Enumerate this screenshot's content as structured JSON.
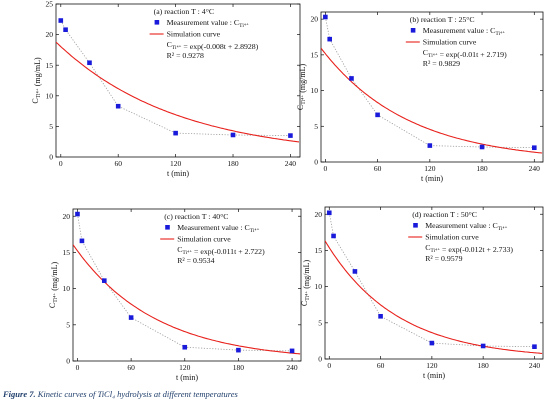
{
  "chart_data": [
    {
      "type": "scatter",
      "panel_label": "(a) reaction T : 4°C",
      "xlabel": "t (min)",
      "ylabel": "C_Ti⁴⁺ (mg/mL)",
      "xlim": [
        -5,
        250
      ],
      "ylim": [
        0,
        25
      ],
      "xticks": [
        0,
        60,
        120,
        180,
        240
      ],
      "yticks": [
        0,
        5,
        10,
        15,
        20,
        25
      ],
      "legend": {
        "measurement": "Measurement value : C_Ti⁴⁺",
        "simulation": "Simulation curve",
        "equation": "C_Ti⁴⁺ = exp(-0.008t + 2.8928)",
        "r2": "R² = 0.9278"
      },
      "series": [
        {
          "name": "Measurement value",
          "x": [
            0,
            5,
            30,
            60,
            120,
            180,
            240
          ],
          "y": [
            22.3,
            20.8,
            15.4,
            8.3,
            3.9,
            3.6,
            3.5
          ]
        },
        {
          "name": "Simulation curve",
          "k": 0.008,
          "b": 2.8928
        }
      ]
    },
    {
      "type": "scatter",
      "panel_label": "(b) reaction T : 25°C",
      "xlabel": "t (min)",
      "ylabel": "C_Ti⁴⁺ (mg/mL)",
      "xlim": [
        -5,
        250
      ],
      "ylim": [
        0,
        21
      ],
      "xticks": [
        0,
        60,
        120,
        180,
        240
      ],
      "yticks": [
        0,
        5,
        10,
        15,
        20
      ],
      "legend": {
        "measurement": "Measurement value : C_Ti⁴⁺",
        "simulation": "Simulation curve",
        "equation": "C_Ti⁴⁺ = exp(-0.01t + 2.719)",
        "r2": "R² = 0.9829"
      },
      "series": [
        {
          "name": "Measurement value",
          "x": [
            0,
            5,
            30,
            60,
            120,
            180,
            240
          ],
          "y": [
            20.3,
            17.2,
            11.7,
            6.6,
            2.3,
            2.1,
            2.0
          ]
        },
        {
          "name": "Simulation curve",
          "k": 0.01,
          "b": 2.719
        }
      ]
    },
    {
      "type": "scatter",
      "panel_label": "(c) reaction T : 40°C",
      "xlabel": "t (min)",
      "ylabel": "C_Ti⁴⁺ (mg/mL)",
      "xlim": [
        -5,
        250
      ],
      "ylim": [
        0,
        21
      ],
      "xticks": [
        0,
        60,
        120,
        180,
        240
      ],
      "yticks": [
        0,
        5,
        10,
        15,
        20
      ],
      "legend": {
        "measurement": "Measurement value : C_Ti⁴⁺",
        "simulation": "Simulation curve",
        "equation": "C_Ti⁴⁺ = exp(-0.011t + 2.722)",
        "r2": "R² = 0.9534"
      },
      "series": [
        {
          "name": "Measurement value",
          "x": [
            0,
            5,
            30,
            60,
            120,
            180,
            240
          ],
          "y": [
            20.3,
            16.6,
            11.1,
            6.0,
            1.9,
            1.5,
            1.4
          ]
        },
        {
          "name": "Simulation curve",
          "k": 0.011,
          "b": 2.722
        }
      ]
    },
    {
      "type": "scatter",
      "panel_label": "(d) reaction T : 50°C",
      "xlabel": "t (min)",
      "ylabel": "C_Ti⁴⁺ (mg/mL)",
      "xlim": [
        -5,
        250
      ],
      "ylim": [
        0,
        21
      ],
      "xticks": [
        0,
        60,
        120,
        180,
        240
      ],
      "yticks": [
        0,
        5,
        10,
        15,
        20
      ],
      "legend": {
        "measurement": "Measurement value : C_Ti⁴⁺",
        "simulation": "Simulation curve",
        "equation": "C_Ti⁴⁺ = exp(-0.012t + 2.733)",
        "r2": "R² = 0.9579"
      },
      "series": [
        {
          "name": "Measurement value",
          "x": [
            0,
            5,
            30,
            60,
            120,
            180,
            240
          ],
          "y": [
            20.2,
            17.0,
            12.1,
            5.9,
            2.2,
            1.8,
            1.7
          ]
        },
        {
          "name": "Simulation curve",
          "k": 0.012,
          "b": 2.733
        }
      ]
    }
  ],
  "colors": {
    "measurement": "#1a1adb",
    "simulation": "#e8211c",
    "connector": "#9a9a9a",
    "axis": "#111111",
    "caption": "#1f3e6b"
  },
  "caption": {
    "figure_label": "Figure 7.",
    "text": "Kinetic curves of TiCl₄ hydrolysis at different temperatures"
  }
}
